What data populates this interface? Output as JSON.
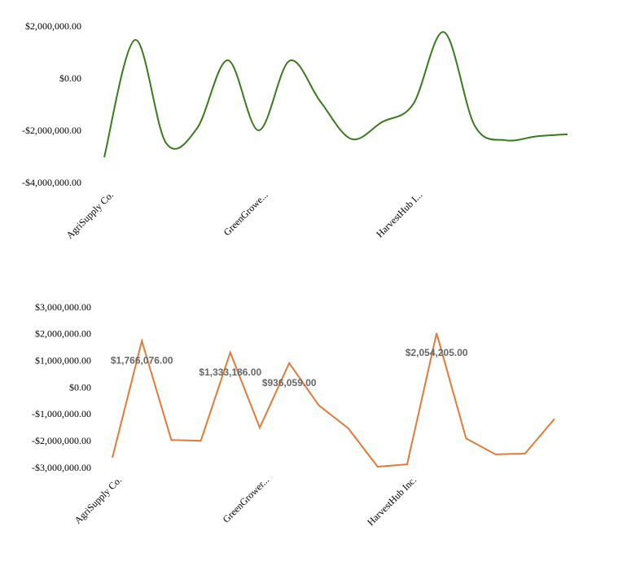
{
  "chart_data": [
    {
      "type": "line",
      "smooth": true,
      "color": "#3a7a1e",
      "categories": [
        "AgriSupply Co.",
        null,
        null,
        null,
        null,
        "GreenGrowe...",
        null,
        null,
        null,
        null,
        "HarvestHub I...",
        null,
        null,
        null,
        null,
        null
      ],
      "series": [
        {
          "values": [
            -3000000,
            1500000,
            -2450000,
            -1900000,
            720000,
            -1970000,
            700000,
            -870000,
            -2300000,
            -1650000,
            -970000,
            1800000,
            -1800000,
            -2350000,
            -2200000,
            -2120000
          ]
        }
      ],
      "ylim": [
        -4000000,
        2000000
      ],
      "yticks": [
        {
          "value": -4000000,
          "label": "-$4,000,000.00"
        },
        {
          "value": -2000000,
          "label": "-$2,000,000.00"
        },
        {
          "value": 0,
          "label": "$0.00"
        },
        {
          "value": 2000000,
          "label": "$2,000,000.00"
        }
      ]
    },
    {
      "type": "line",
      "smooth": false,
      "color": "#e07b39",
      "categories": [
        "AgriSupply Co.",
        null,
        null,
        null,
        null,
        "GreenGrower...",
        null,
        null,
        null,
        null,
        "HarvestHub Inc.",
        null,
        null,
        null,
        null,
        null
      ],
      "series": [
        {
          "values": [
            -2600000,
            1766076,
            -1940000,
            -1970000,
            1333186,
            -1480000,
            936059,
            -640000,
            -1500000,
            -2940000,
            -2850000,
            2054205,
            -1880000,
            -2480000,
            -2450000,
            -1150000
          ],
          "value_labels": [
            null,
            "$1,766,076.00",
            null,
            null,
            "$1,333,186.00",
            null,
            "$936,059.00",
            null,
            null,
            null,
            null,
            "$2,054,205.00",
            null,
            null,
            null,
            null
          ]
        }
      ],
      "ylim": [
        -3000000,
        3000000
      ],
      "yticks": [
        {
          "value": -3000000,
          "label": "-$3,000,000.00"
        },
        {
          "value": -2000000,
          "label": "-$2,000,000.00"
        },
        {
          "value": -1000000,
          "label": "-$1,000,000.00"
        },
        {
          "value": 0,
          "label": "$0.00"
        },
        {
          "value": 1000000,
          "label": "$1,000,000.00"
        },
        {
          "value": 2000000,
          "label": "$2,000,000.00"
        },
        {
          "value": 3000000,
          "label": "$3,000,000.00"
        }
      ]
    }
  ]
}
